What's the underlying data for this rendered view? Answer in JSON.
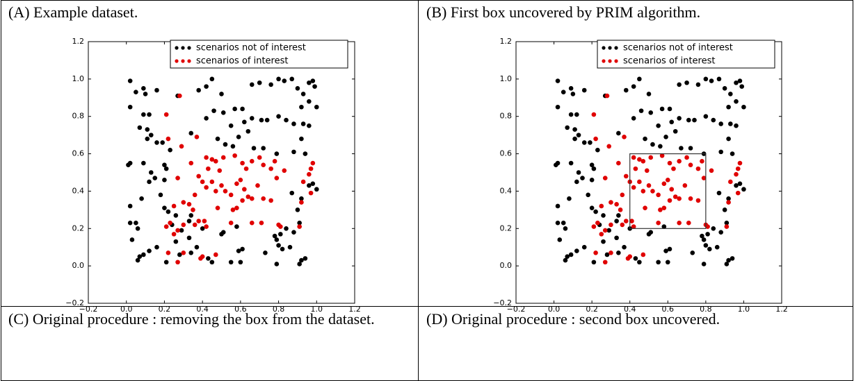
{
  "chart_data": [
    {
      "type": "scatter",
      "title": "(A) Example dataset.",
      "legend": "upper right",
      "grid": false,
      "xlim": [
        -0.2,
        1.2
      ],
      "ylim": [
        -0.2,
        1.2
      ],
      "xticks": [
        {
          "value": -0.2,
          "label": "−0.2"
        },
        {
          "value": 0,
          "label": "0.0"
        },
        0.2,
        0.4,
        0.6,
        0.8,
        {
          "value": 1,
          "label": "1.0"
        },
        1.2
      ],
      "yticks": [
        {
          "value": -0.2,
          "label": "−0.2"
        },
        {
          "value": 0,
          "label": "0.0"
        },
        0.2,
        0.4,
        0.6,
        0.8,
        {
          "value": 1,
          "label": "1.0"
        },
        1.2
      ],
      "series": [
        {
          "name": "scenarios not of interest",
          "color": "#000000",
          "x": [
            0.02,
            0.05,
            0.09,
            0.1,
            0.16,
            0.27,
            0.38,
            0.42,
            0.45,
            0.5,
            0.66,
            0.7,
            0.76,
            0.8,
            0.83,
            0.87,
            0.9,
            0.96,
            0.98,
            0.99,
            0.93,
            1.0,
            0.96,
            0.02,
            0.09,
            0.12,
            0.07,
            0.11,
            0.13,
            0.11,
            0.16,
            0.19,
            0.23,
            0.34,
            0.42,
            0.46,
            0.51,
            0.55,
            0.57,
            0.61,
            0.62,
            0.66,
            0.71,
            0.74,
            0.8,
            0.84,
            0.88,
            0.92,
            0.93,
            0.96,
            0.64,
            0.59,
            0.48,
            0.52,
            0.56,
            0.67,
            0.72,
            0.79,
            0.88,
            0.92,
            0.94,
            0.02,
            0.01,
            0.09,
            0.13,
            0.15,
            0.2,
            0.21,
            0.2,
            0.12,
            0.18,
            0.08,
            0.02,
            0.2,
            0.22,
            0.02,
            0.05,
            0.06,
            0.03,
            0.34,
            0.33,
            0.26,
            0.24,
            0.29,
            0.33,
            0.4,
            0.5,
            0.51,
            0.58,
            0.78,
            0.8,
            0.82,
            0.79,
            0.81,
            0.84,
            0.88,
            0.91,
            0.98,
            0.96,
            0.92,
            0.87,
            0.9,
            1.0,
            0.06,
            0.07,
            0.09,
            0.12,
            0.16,
            0.21,
            0.26,
            0.28,
            0.34,
            0.37,
            0.43,
            0.45,
            0.55,
            0.6,
            0.59,
            0.61,
            0.73,
            0.79,
            0.91,
            0.92,
            0.94,
            0.86
          ],
          "values": [
            0.99,
            0.93,
            0.95,
            0.92,
            0.94,
            0.91,
            0.94,
            0.96,
            1.0,
            0.92,
            0.97,
            0.98,
            0.97,
            1.0,
            0.99,
            1.0,
            0.95,
            0.98,
            0.99,
            0.96,
            0.92,
            0.85,
            0.88,
            0.85,
            0.81,
            0.81,
            0.74,
            0.73,
            0.7,
            0.68,
            0.66,
            0.66,
            0.62,
            0.71,
            0.79,
            0.83,
            0.82,
            0.75,
            0.84,
            0.84,
            0.77,
            0.79,
            0.78,
            0.78,
            0.8,
            0.78,
            0.76,
            0.85,
            0.76,
            0.75,
            0.72,
            0.69,
            0.68,
            0.65,
            0.64,
            0.63,
            0.63,
            0.6,
            0.61,
            0.68,
            0.6,
            0.55,
            0.54,
            0.55,
            0.5,
            0.47,
            0.54,
            0.52,
            0.46,
            0.45,
            0.38,
            0.36,
            0.32,
            0.31,
            0.29,
            0.23,
            0.23,
            0.2,
            0.14,
            0.27,
            0.24,
            0.27,
            0.22,
            0.19,
            0.15,
            0.2,
            0.17,
            0.18,
            0.21,
            0.16,
            0.11,
            0.09,
            0.14,
            0.17,
            0.2,
            0.18,
            0.23,
            0.44,
            0.43,
            0.36,
            0.39,
            0.3,
            0.41,
            0.03,
            0.05,
            0.06,
            0.08,
            0.1,
            0.02,
            0.13,
            0.06,
            0.07,
            0.1,
            0.04,
            0.02,
            0.02,
            0.02,
            0.08,
            0.09,
            0.07,
            0.01,
            0.01,
            0.03,
            0.04,
            0.1
          ]
        },
        {
          "name": "scenarios of interest",
          "color": "#e00000",
          "x": [
            0.21,
            0.22,
            0.28,
            0.29,
            0.37,
            0.34,
            0.42,
            0.45,
            0.47,
            0.43,
            0.49,
            0.51,
            0.57,
            0.61,
            0.63,
            0.66,
            0.7,
            0.72,
            0.76,
            0.78,
            0.83,
            0.98,
            0.97,
            0.96,
            0.93,
            0.97,
            0.92,
            0.27,
            0.38,
            0.4,
            0.42,
            0.45,
            0.47,
            0.5,
            0.52,
            0.55,
            0.58,
            0.6,
            0.62,
            0.64,
            0.66,
            0.69,
            0.72,
            0.76,
            0.79,
            0.36,
            0.33,
            0.3,
            0.35,
            0.25,
            0.21,
            0.23,
            0.27,
            0.3,
            0.36,
            0.38,
            0.41,
            0.42,
            0.48,
            0.56,
            0.58,
            0.61,
            0.55,
            0.66,
            0.71,
            0.81,
            0.8,
            0.91,
            0.22,
            0.25,
            0.27,
            0.3,
            0.39,
            0.47,
            0.4
          ],
          "values": [
            0.81,
            0.68,
            0.91,
            0.64,
            0.69,
            0.55,
            0.58,
            0.57,
            0.56,
            0.52,
            0.51,
            0.58,
            0.59,
            0.55,
            0.52,
            0.56,
            0.58,
            0.54,
            0.52,
            0.56,
            0.51,
            0.55,
            0.52,
            0.49,
            0.45,
            0.39,
            0.34,
            0.47,
            0.48,
            0.45,
            0.42,
            0.45,
            0.4,
            0.43,
            0.4,
            0.38,
            0.44,
            0.46,
            0.41,
            0.37,
            0.36,
            0.43,
            0.36,
            0.35,
            0.47,
            0.38,
            0.33,
            0.34,
            0.3,
            0.32,
            0.21,
            0.23,
            0.19,
            0.22,
            0.22,
            0.24,
            0.24,
            0.21,
            0.31,
            0.3,
            0.31,
            0.35,
            0.23,
            0.23,
            0.23,
            0.21,
            0.22,
            0.21,
            0.07,
            0.17,
            0.02,
            0.07,
            0.04,
            0.06,
            0.05
          ]
        }
      ]
    },
    {
      "type": "scatter",
      "title": "(B) First box uncovered by PRIM algorithm.",
      "legend": "upper right",
      "grid": false,
      "xlim": [
        -0.2,
        1.2
      ],
      "ylim": [
        -0.2,
        1.2
      ],
      "xticks": [
        {
          "value": -0.2,
          "label": "−0.2"
        },
        {
          "value": 0,
          "label": "0.0"
        },
        0.2,
        0.4,
        0.6,
        0.8,
        {
          "value": 1,
          "label": "1.0"
        },
        1.2
      ],
      "yticks": [
        {
          "value": -0.2,
          "label": "−0.2"
        },
        {
          "value": 0,
          "label": "0.0"
        },
        0.2,
        0.4,
        0.6,
        0.8,
        {
          "value": 1,
          "label": "1.0"
        },
        1.2
      ],
      "box": {
        "xlim": [
          0.4,
          0.8
        ],
        "ylim": [
          0.2,
          0.6
        ]
      },
      "series": [
        {
          "name": "scenarios not of interest",
          "color": "#000000",
          "x": [
            0.02,
            0.05,
            0.09,
            0.1,
            0.16,
            0.27,
            0.38,
            0.42,
            0.45,
            0.5,
            0.66,
            0.7,
            0.76,
            0.8,
            0.83,
            0.87,
            0.9,
            0.96,
            0.98,
            0.99,
            0.93,
            1.0,
            0.96,
            0.02,
            0.09,
            0.12,
            0.07,
            0.11,
            0.13,
            0.11,
            0.16,
            0.19,
            0.23,
            0.34,
            0.42,
            0.46,
            0.51,
            0.55,
            0.57,
            0.61,
            0.62,
            0.66,
            0.71,
            0.74,
            0.8,
            0.84,
            0.88,
            0.92,
            0.93,
            0.96,
            0.64,
            0.59,
            0.48,
            0.52,
            0.56,
            0.67,
            0.72,
            0.79,
            0.88,
            0.92,
            0.94,
            0.02,
            0.01,
            0.09,
            0.13,
            0.15,
            0.2,
            0.21,
            0.2,
            0.12,
            0.18,
            0.08,
            0.02,
            0.2,
            0.22,
            0.02,
            0.05,
            0.06,
            0.03,
            0.34,
            0.33,
            0.26,
            0.24,
            0.29,
            0.33,
            0.4,
            0.5,
            0.51,
            0.58,
            0.78,
            0.8,
            0.82,
            0.79,
            0.81,
            0.84,
            0.88,
            0.91,
            0.98,
            0.96,
            0.92,
            0.87,
            0.9,
            1.0,
            0.06,
            0.07,
            0.09,
            0.12,
            0.16,
            0.21,
            0.26,
            0.28,
            0.34,
            0.37,
            0.43,
            0.45,
            0.55,
            0.6,
            0.59,
            0.61,
            0.73,
            0.79,
            0.91,
            0.92,
            0.94,
            0.86
          ],
          "values": [
            0.99,
            0.93,
            0.95,
            0.92,
            0.94,
            0.91,
            0.94,
            0.96,
            1.0,
            0.92,
            0.97,
            0.98,
            0.97,
            1.0,
            0.99,
            1.0,
            0.95,
            0.98,
            0.99,
            0.96,
            0.92,
            0.85,
            0.88,
            0.85,
            0.81,
            0.81,
            0.74,
            0.73,
            0.7,
            0.68,
            0.66,
            0.66,
            0.62,
            0.71,
            0.79,
            0.83,
            0.82,
            0.75,
            0.84,
            0.84,
            0.77,
            0.79,
            0.78,
            0.78,
            0.8,
            0.78,
            0.76,
            0.85,
            0.76,
            0.75,
            0.72,
            0.69,
            0.68,
            0.65,
            0.64,
            0.63,
            0.63,
            0.6,
            0.61,
            0.68,
            0.6,
            0.55,
            0.54,
            0.55,
            0.5,
            0.47,
            0.54,
            0.52,
            0.46,
            0.45,
            0.38,
            0.36,
            0.32,
            0.31,
            0.29,
            0.23,
            0.23,
            0.2,
            0.14,
            0.27,
            0.24,
            0.27,
            0.22,
            0.19,
            0.15,
            0.2,
            0.17,
            0.18,
            0.21,
            0.16,
            0.11,
            0.09,
            0.14,
            0.17,
            0.2,
            0.18,
            0.23,
            0.44,
            0.43,
            0.36,
            0.39,
            0.3,
            0.41,
            0.03,
            0.05,
            0.06,
            0.08,
            0.1,
            0.02,
            0.13,
            0.06,
            0.07,
            0.1,
            0.04,
            0.02,
            0.02,
            0.02,
            0.08,
            0.09,
            0.07,
            0.01,
            0.01,
            0.03,
            0.04,
            0.1
          ]
        },
        {
          "name": "scenarios of interest",
          "color": "#e00000",
          "x": [
            0.21,
            0.22,
            0.28,
            0.29,
            0.37,
            0.34,
            0.42,
            0.45,
            0.47,
            0.43,
            0.49,
            0.51,
            0.57,
            0.61,
            0.63,
            0.66,
            0.7,
            0.72,
            0.76,
            0.78,
            0.83,
            0.98,
            0.97,
            0.96,
            0.93,
            0.97,
            0.92,
            0.27,
            0.38,
            0.4,
            0.42,
            0.45,
            0.47,
            0.5,
            0.52,
            0.55,
            0.58,
            0.6,
            0.62,
            0.64,
            0.66,
            0.69,
            0.72,
            0.76,
            0.79,
            0.36,
            0.33,
            0.3,
            0.35,
            0.25,
            0.21,
            0.23,
            0.27,
            0.3,
            0.36,
            0.38,
            0.41,
            0.42,
            0.48,
            0.56,
            0.58,
            0.61,
            0.55,
            0.66,
            0.71,
            0.81,
            0.8,
            0.91,
            0.22,
            0.25,
            0.27,
            0.3,
            0.39,
            0.47,
            0.4
          ],
          "values": [
            0.81,
            0.68,
            0.91,
            0.64,
            0.69,
            0.55,
            0.58,
            0.57,
            0.56,
            0.52,
            0.51,
            0.58,
            0.59,
            0.55,
            0.52,
            0.56,
            0.58,
            0.54,
            0.52,
            0.56,
            0.51,
            0.55,
            0.52,
            0.49,
            0.45,
            0.39,
            0.34,
            0.47,
            0.48,
            0.45,
            0.42,
            0.45,
            0.4,
            0.43,
            0.4,
            0.38,
            0.44,
            0.46,
            0.41,
            0.37,
            0.36,
            0.43,
            0.36,
            0.35,
            0.47,
            0.38,
            0.33,
            0.34,
            0.3,
            0.32,
            0.21,
            0.23,
            0.19,
            0.22,
            0.22,
            0.24,
            0.24,
            0.21,
            0.31,
            0.3,
            0.31,
            0.35,
            0.23,
            0.23,
            0.23,
            0.21,
            0.22,
            0.21,
            0.07,
            0.17,
            0.02,
            0.07,
            0.04,
            0.06,
            0.05
          ]
        }
      ]
    }
  ],
  "lower_captions": [
    "(C) Original procedure : removing the box from the dataset.",
    "(D) Original procedure : second box uncovered."
  ]
}
